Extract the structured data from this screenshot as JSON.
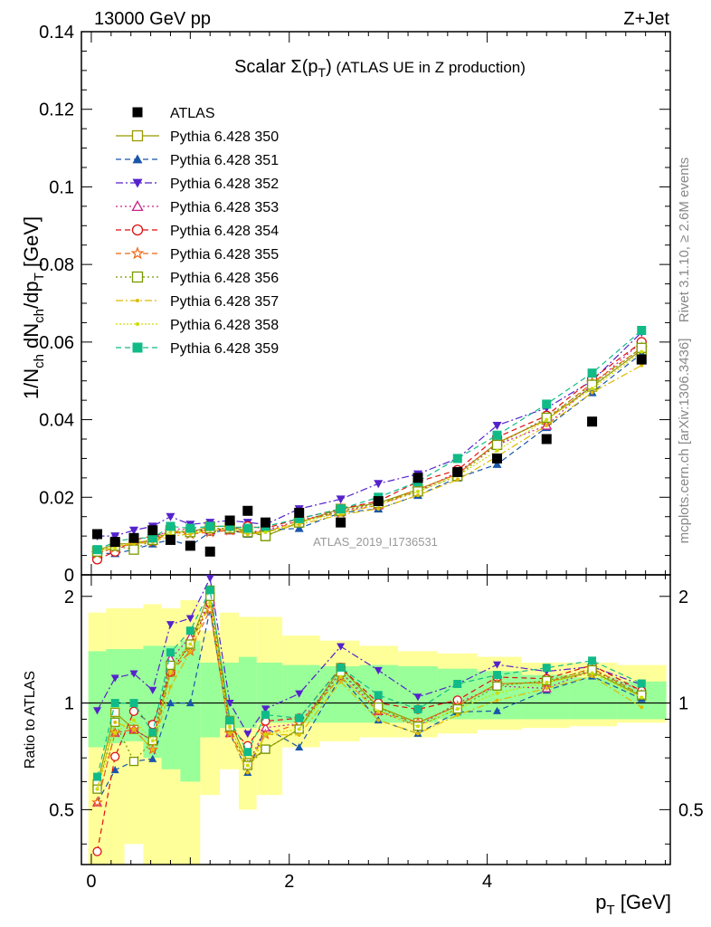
{
  "header": {
    "left": "13000 GeV pp",
    "right": "Z+Jet"
  },
  "side_labels": {
    "rivet": "Rivet 3.1.10, ≥ 2.6M events",
    "mcplots": "mcplots.cern.ch [arXiv:1306.3436]"
  },
  "analysis_label": "ATLAS_2019_I1736531",
  "colors": {
    "ref": "#000000",
    "band_inner": "#99ff99",
    "band_outer": "#ffff99"
  },
  "chart_data": {
    "type": "scatter",
    "title": "Scalar Σ(p_T) (ATLAS UE in Z production)",
    "xlabel": "p_T [GeV]",
    "ylabel": "1/N_ch dN_ch/dp_T [GeV]",
    "ratio_ylabel": "Ratio to ATLAS",
    "xlim": [
      -0.1,
      5.85
    ],
    "ylim": [
      0,
      0.14
    ],
    "ratio_ylim": [
      0.35,
      2.3
    ],
    "x_ticks": [
      "0",
      "2",
      "4"
    ],
    "y_ticks": [
      "0",
      "0.02",
      "0.04",
      "0.06",
      "0.08",
      "0.1",
      "0.12",
      "0.14"
    ],
    "ratio_ticks": [
      "0.5",
      "1",
      "2"
    ],
    "x": [
      0.06,
      0.24,
      0.43,
      0.62,
      0.8,
      1.0,
      1.2,
      1.4,
      1.58,
      1.76,
      2.1,
      2.52,
      2.9,
      3.3,
      3.7,
      4.1,
      4.6,
      5.06,
      5.56
    ],
    "reference": {
      "name": "ATLAS",
      "values": [
        0.0105,
        0.0085,
        0.0095,
        0.0115,
        0.009,
        0.0075,
        0.006,
        0.014,
        0.0165,
        0.0135,
        0.016,
        0.0135,
        0.019,
        0.025,
        0.0265,
        0.03,
        0.035,
        0.0395,
        0.0555
      ]
    },
    "ratio_bands": {
      "inner": [
        [
          0.75,
          1.4
        ],
        [
          0.77,
          1.42
        ],
        [
          0.78,
          1.42
        ],
        [
          0.7,
          1.45
        ],
        [
          0.65,
          1.45
        ],
        [
          0.6,
          1.5
        ],
        [
          0.8,
          1.3
        ],
        [
          0.85,
          1.3
        ],
        [
          0.85,
          1.35
        ],
        [
          0.88,
          1.3
        ],
        [
          0.88,
          1.28
        ],
        [
          0.88,
          1.27
        ],
        [
          0.88,
          1.28
        ],
        [
          0.88,
          1.27
        ],
        [
          0.9,
          1.25
        ],
        [
          0.9,
          1.23
        ],
        [
          0.9,
          1.2
        ],
        [
          0.9,
          1.18
        ],
        [
          0.9,
          1.15
        ]
      ],
      "outer": [
        [
          0.35,
          1.8
        ],
        [
          0.35,
          1.85
        ],
        [
          0.4,
          1.85
        ],
        [
          0.35,
          1.9
        ],
        [
          0.35,
          1.85
        ],
        [
          0.35,
          1.95
        ],
        [
          0.55,
          1.6
        ],
        [
          0.65,
          1.8
        ],
        [
          0.5,
          1.75
        ],
        [
          0.55,
          1.75
        ],
        [
          0.75,
          1.55
        ],
        [
          0.78,
          1.5
        ],
        [
          0.8,
          1.45
        ],
        [
          0.8,
          1.4
        ],
        [
          0.82,
          1.38
        ],
        [
          0.84,
          1.35
        ],
        [
          0.85,
          1.3
        ],
        [
          0.86,
          1.3
        ],
        [
          0.88,
          1.28
        ]
      ]
    },
    "series": [
      {
        "name": "Pythia 6.428 350",
        "color": "#999900",
        "marker": "square-open",
        "dash": "",
        "values": [
          0.0062,
          0.008,
          0.008,
          0.009,
          0.011,
          0.011,
          0.0125,
          0.0125,
          0.0112,
          0.01,
          0.0135,
          0.017,
          0.0185,
          0.022,
          0.026,
          0.034,
          0.04,
          0.0485,
          0.058
        ]
      },
      {
        "name": "Pythia 6.428 351",
        "color": "#1a55aa",
        "marker": "triangle-up",
        "dash": "6,4",
        "values": [
          0.0055,
          0.0055,
          0.0065,
          0.008,
          0.009,
          0.0075,
          0.011,
          0.0115,
          0.0105,
          0.0115,
          0.012,
          0.016,
          0.017,
          0.0205,
          0.025,
          0.0285,
          0.038,
          0.047,
          0.057
        ]
      },
      {
        "name": "Pythia 6.428 352",
        "color": "#5522cc",
        "marker": "triangle-down",
        "dash": "8,3,2,3",
        "values": [
          0.01,
          0.01,
          0.0115,
          0.0125,
          0.015,
          0.013,
          0.0135,
          0.014,
          0.0135,
          0.013,
          0.017,
          0.0195,
          0.0235,
          0.026,
          0.03,
          0.0385,
          0.043,
          0.05,
          0.0625
        ]
      },
      {
        "name": "Pythia 6.428 353",
        "color": "#cc2288",
        "marker": "triangle-up-open",
        "dash": "2,3",
        "values": [
          0.0055,
          0.007,
          0.008,
          0.009,
          0.012,
          0.0115,
          0.0115,
          0.0115,
          0.011,
          0.0115,
          0.014,
          0.0165,
          0.018,
          0.0215,
          0.0265,
          0.0335,
          0.0385,
          0.049,
          0.06
        ]
      },
      {
        "name": "Pythia 6.428 354",
        "color": "#dd1111",
        "marker": "circle-open",
        "dash": "6,4",
        "values": [
          0.004,
          0.006,
          0.009,
          0.01,
          0.011,
          0.011,
          0.0115,
          0.012,
          0.0125,
          0.012,
          0.0145,
          0.017,
          0.019,
          0.024,
          0.027,
          0.0355,
          0.041,
          0.0505,
          0.06
        ]
      },
      {
        "name": "Pythia 6.428 355",
        "color": "#ee6611",
        "marker": "star-open",
        "dash": "6,4",
        "values": [
          0.0055,
          0.007,
          0.008,
          0.0085,
          0.011,
          0.0105,
          0.011,
          0.0115,
          0.011,
          0.011,
          0.014,
          0.016,
          0.018,
          0.022,
          0.026,
          0.034,
          0.04,
          0.0495,
          0.0585
        ]
      },
      {
        "name": "Pythia 6.428 356",
        "color": "#779900",
        "marker": "square-open",
        "dash": "2,3",
        "values": [
          0.006,
          0.0075,
          0.0065,
          0.009,
          0.0115,
          0.011,
          0.012,
          0.012,
          0.011,
          0.01,
          0.0135,
          0.0165,
          0.0185,
          0.0215,
          0.0255,
          0.0335,
          0.0405,
          0.049,
          0.0585
        ]
      },
      {
        "name": "Pythia 6.428 357",
        "color": "#ddbb00",
        "marker": "dot",
        "dash": "8,3,2,3",
        "values": [
          0.006,
          0.0075,
          0.008,
          0.0085,
          0.01,
          0.0105,
          0.0115,
          0.0115,
          0.0105,
          0.011,
          0.013,
          0.0155,
          0.017,
          0.0205,
          0.0245,
          0.0305,
          0.0385,
          0.047,
          0.054
        ]
      },
      {
        "name": "Pythia 6.428 358",
        "color": "#ccdd00",
        "marker": "dot",
        "dash": "2,2",
        "values": [
          0.006,
          0.007,
          0.0085,
          0.009,
          0.011,
          0.011,
          0.0115,
          0.012,
          0.011,
          0.011,
          0.0135,
          0.016,
          0.018,
          0.0215,
          0.0255,
          0.032,
          0.04,
          0.048,
          0.0575
        ]
      },
      {
        "name": "Pythia 6.428 359",
        "color": "#11bb88",
        "marker": "square",
        "dash": "6,4",
        "values": [
          0.0065,
          0.0085,
          0.0095,
          0.0095,
          0.0125,
          0.012,
          0.0125,
          0.0125,
          0.012,
          0.0125,
          0.0145,
          0.017,
          0.02,
          0.024,
          0.03,
          0.036,
          0.044,
          0.052,
          0.063
        ]
      }
    ]
  }
}
